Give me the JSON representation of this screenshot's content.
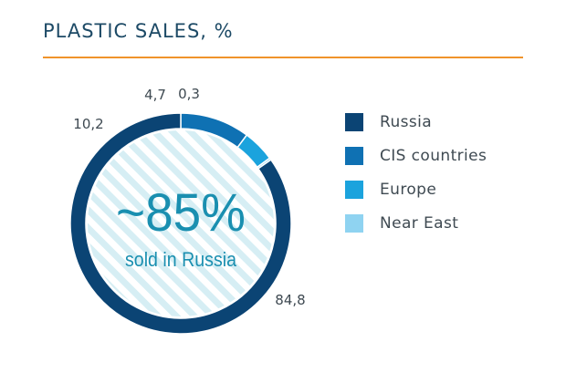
{
  "header": {
    "title": "PLASTIC SALES, %"
  },
  "center": {
    "big": "~85%",
    "sub": "sold in Russia"
  },
  "colors": {
    "Russia": "#0b4474",
    "CIS countries": "#0f71b3",
    "Europe": "#1ba3dd",
    "Near East": "#8fd3f1",
    "title": "#1d4a66",
    "rule": "#f0932b",
    "center_text": "#1a8fb0",
    "hatch": "#d6eef4"
  },
  "chart_data": {
    "type": "pie",
    "donut": true,
    "title": "PLASTIC SALES, %",
    "categories": [
      "Russia",
      "CIS countries",
      "Europe",
      "Near East"
    ],
    "values": [
      84.8,
      10.2,
      4.7,
      0.3
    ],
    "data_labels": [
      "84,8",
      "10,2",
      "4,7",
      "0,3"
    ],
    "legend_placement": "right"
  }
}
